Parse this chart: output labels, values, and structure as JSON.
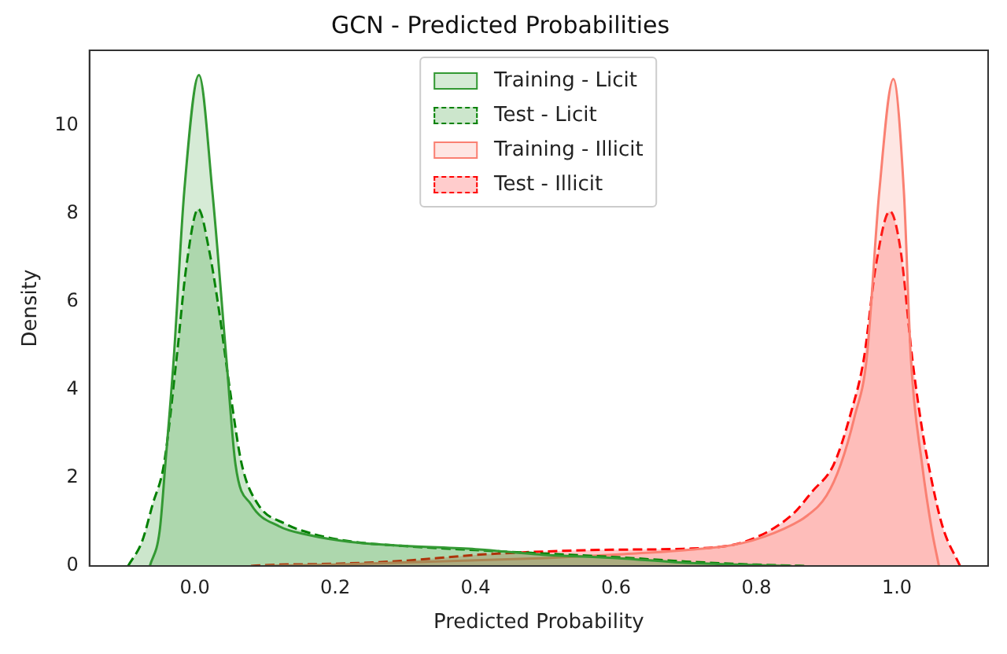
{
  "chart_data": {
    "type": "area",
    "title": "GCN - Predicted Probabilities",
    "xlabel": "Predicted Probability",
    "ylabel": "Density",
    "xlim": [
      -0.15,
      1.13
    ],
    "ylim": [
      0,
      11.7
    ],
    "xticks": [
      {
        "value": 0,
        "label": "0.0"
      },
      {
        "value": 0.2,
        "label": "0.2"
      },
      {
        "value": 0.4,
        "label": "0.4"
      },
      {
        "value": 0.6,
        "label": "0.6"
      },
      {
        "value": 0.8,
        "label": "0.8"
      },
      {
        "value": 1,
        "label": "1.0"
      }
    ],
    "yticks": [
      0,
      2,
      4,
      6,
      8,
      10
    ],
    "grid": false,
    "legend": "top",
    "marker": "none",
    "series": [
      {
        "name": "Training - Licit",
        "color": "#339933",
        "line_style": "solid",
        "x": [
          -0.064,
          -0.05,
          -0.042,
          -0.03,
          -0.015,
          0.006,
          0.025,
          0.045,
          0.058,
          0.08,
          0.12,
          0.163,
          0.22,
          0.295,
          0.4,
          0.5,
          0.6,
          0.7,
          0.8,
          0.85
        ],
        "values": [
          0,
          0.8,
          2.3,
          4.7,
          8.5,
          11.14,
          8.5,
          4.7,
          2.3,
          1.4,
          0.9,
          0.7,
          0.55,
          0.46,
          0.38,
          0.25,
          0.18,
          0.07,
          0.02,
          0
        ]
      },
      {
        "name": "Test - Licit",
        "color": "#008000",
        "line_style": "dashed",
        "x": [
          -0.095,
          -0.075,
          -0.06,
          -0.044,
          -0.026,
          -0.012,
          0.005,
          0.02,
          0.034,
          0.05,
          0.067,
          0.09,
          0.13,
          0.17,
          0.22,
          0.3,
          0.4,
          0.5,
          0.6,
          0.7,
          0.8,
          0.87
        ],
        "values": [
          0,
          0.56,
          1.4,
          2.3,
          4.7,
          6.8,
          8.1,
          7.2,
          5.85,
          4.0,
          2.3,
          1.4,
          0.95,
          0.72,
          0.56,
          0.45,
          0.36,
          0.28,
          0.2,
          0.1,
          0.03,
          0
        ]
      },
      {
        "name": "Training - Illicit",
        "color": "#fa8072",
        "line_style": "solid",
        "x": [
          0.1,
          0.2,
          0.3,
          0.4,
          0.5,
          0.6,
          0.7,
          0.78,
          0.84,
          0.873,
          0.9,
          0.92,
          0.94,
          0.957,
          0.975,
          0.995,
          1.01,
          1.02,
          1.036,
          1.05,
          1.06
        ],
        "values": [
          0,
          0.03,
          0.08,
          0.13,
          0.18,
          0.26,
          0.36,
          0.52,
          0.85,
          1.15,
          1.6,
          2.3,
          3.4,
          4.7,
          8.5,
          11.05,
          8.5,
          4.7,
          2.3,
          0.8,
          0
        ]
      },
      {
        "name": "Test - Illicit",
        "color": "#ff0000",
        "line_style": "dashed",
        "x": [
          0.08,
          0.1,
          0.2,
          0.3,
          0.4,
          0.5,
          0.6,
          0.696,
          0.785,
          0.85,
          0.88,
          0.91,
          0.935,
          0.953,
          0.97,
          0.99,
          1.005,
          1.022,
          1.035,
          1.045,
          1.065,
          1.09
        ],
        "values": [
          0,
          0.02,
          0.05,
          0.12,
          0.25,
          0.33,
          0.37,
          0.39,
          0.56,
          1.15,
          1.7,
          2.3,
          3.5,
          4.7,
          6.8,
          8.05,
          7.2,
          4.7,
          3.2,
          2.3,
          0.9,
          0
        ]
      }
    ]
  }
}
